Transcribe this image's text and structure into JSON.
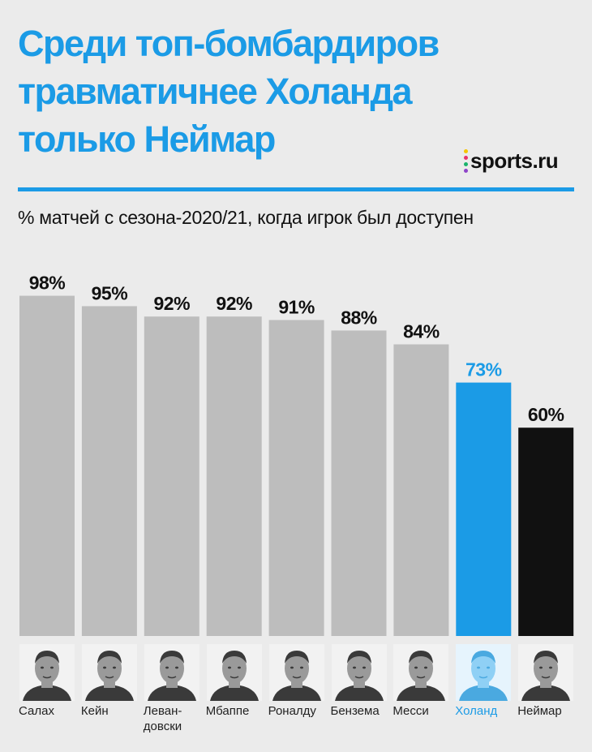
{
  "title_lines": [
    "Среди топ-бомбардиров",
    "травматичнее Холанда",
    "только Неймар"
  ],
  "subtitle": "% матчей с сезона-2020/21, когда игрок был доступен",
  "logo": {
    "text": "sports.ru",
    "dot_colors": [
      "#f5c400",
      "#e8336d",
      "#19b36b",
      "#8e44c9"
    ]
  },
  "colors": {
    "accent": "#1b9be6",
    "bar_default": "#bdbdbd",
    "bar_neymar": "#111111",
    "background": "#ebebeb"
  },
  "chart_data": {
    "type": "bar",
    "categories": [
      "Салах",
      "Кейн",
      "Левандовски",
      "Мбаппе",
      "Роналду",
      "Бензема",
      "Месси",
      "Холанд",
      "Неймар"
    ],
    "category_labels": [
      [
        "Салах"
      ],
      [
        "Кейн"
      ],
      [
        "Леван-",
        "довски"
      ],
      [
        "Мбаппе"
      ],
      [
        "Роналду"
      ],
      [
        "Бензема"
      ],
      [
        "Месси"
      ],
      [
        "Холанд"
      ],
      [
        "Неймар"
      ]
    ],
    "values": [
      98,
      95,
      92,
      92,
      91,
      88,
      84,
      73,
      60
    ],
    "value_labels": [
      "98%",
      "95%",
      "92%",
      "92%",
      "91%",
      "88%",
      "84%",
      "73%",
      "60%"
    ],
    "bar_colors": [
      "#bdbdbd",
      "#bdbdbd",
      "#bdbdbd",
      "#bdbdbd",
      "#bdbdbd",
      "#bdbdbd",
      "#bdbdbd",
      "#1b9be6",
      "#111111"
    ],
    "highlight_index": 7,
    "ylim": [
      0,
      100
    ],
    "grid": false,
    "legend": "none",
    "images": [
      "player-photo",
      "player-photo",
      "player-photo",
      "player-photo",
      "player-photo",
      "player-photo",
      "player-photo",
      "player-photo",
      "player-photo"
    ]
  }
}
